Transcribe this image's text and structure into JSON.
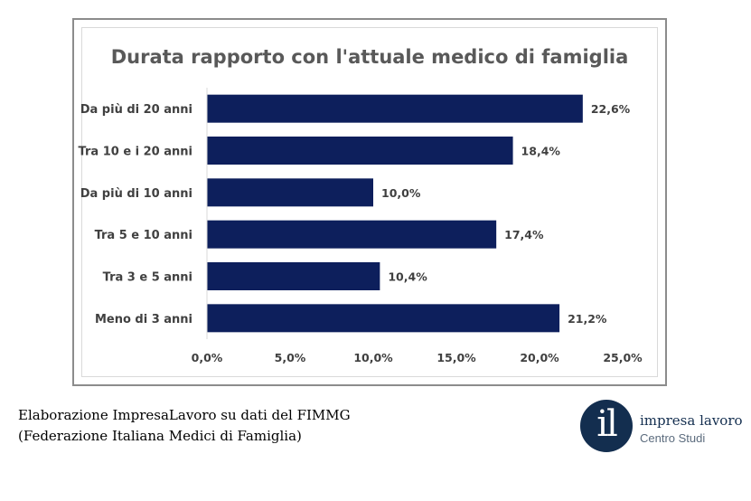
{
  "chart_data": {
    "type": "bar",
    "orientation": "horizontal",
    "title": "Durata rapporto con l'attuale medico di famiglia",
    "categories": [
      "Da più di 20 anni",
      "Tra 10 e i 20 anni",
      "Da più di 10 anni",
      "Tra 5 e 10 anni",
      "Tra 3 e 5 anni",
      "Meno di 3 anni"
    ],
    "values": [
      22.6,
      18.4,
      10.0,
      17.4,
      10.4,
      21.2
    ],
    "value_labels": [
      "22,6%",
      "18,4%",
      "10,0%",
      "17,4%",
      "10,4%",
      "21,2%"
    ],
    "xlim": [
      0,
      25
    ],
    "xticks": [
      0,
      5,
      10,
      15,
      20,
      25
    ],
    "xtick_labels": [
      "0,0%",
      "5,0%",
      "10,0%",
      "15,0%",
      "20,0%",
      "25,0%"
    ],
    "grid": false,
    "bar_color": "#0d1f5c"
  },
  "caption": {
    "line1": "Elaborazione ImpresaLavoro su dati del FIMMG",
    "line2": "(Federazione Italiana Medici di Famiglia)"
  },
  "logo": {
    "mark": "il",
    "name": "impresa lavoro",
    "subtitle": "Centro Studi",
    "color": "#132e4f"
  }
}
